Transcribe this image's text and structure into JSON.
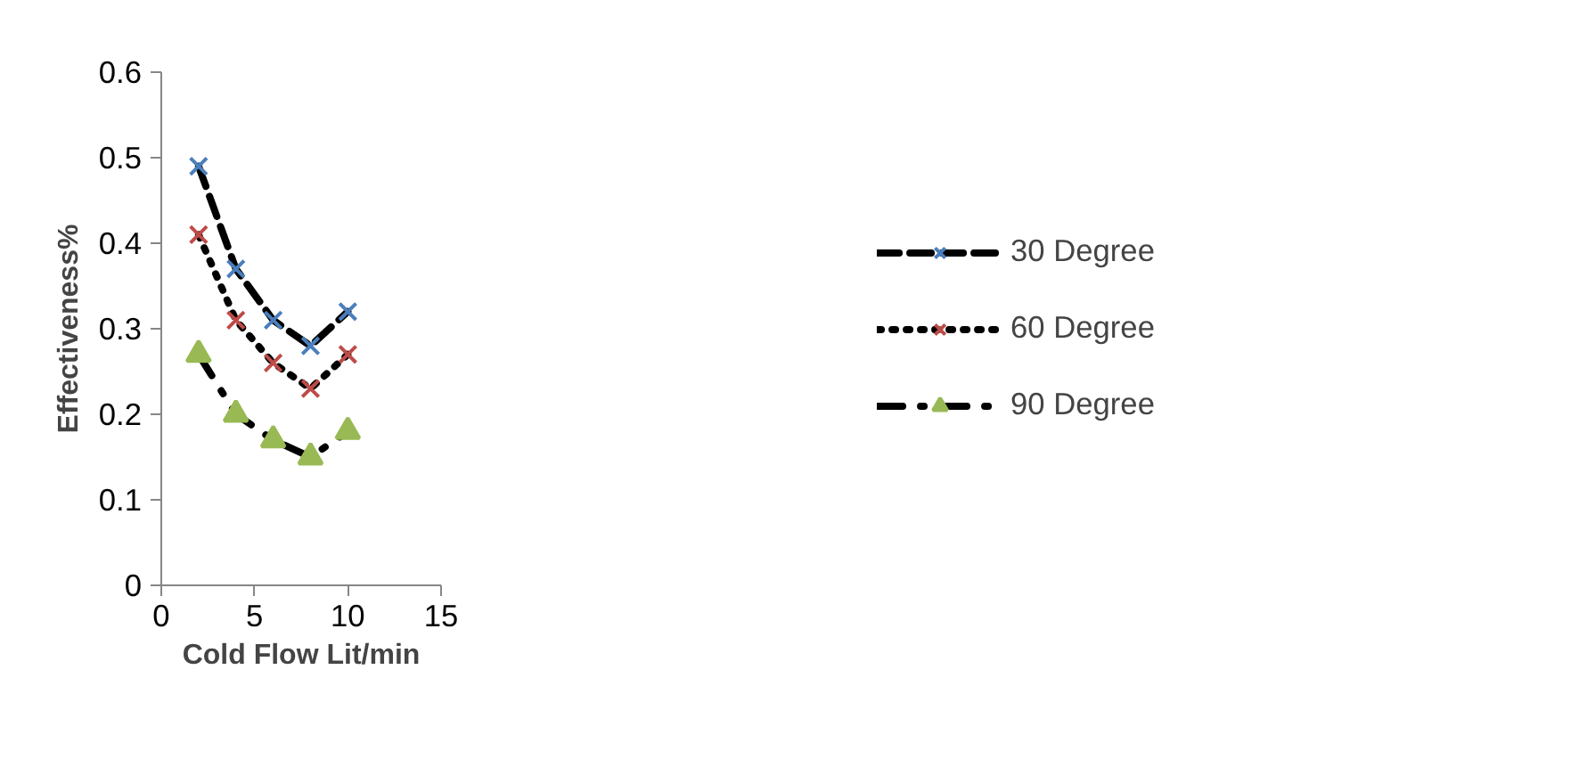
{
  "chart_data": {
    "type": "line",
    "xlabel": "Cold Flow Lit/min",
    "ylabel": "Effectiveness%",
    "x": [
      2,
      4,
      6,
      8,
      10
    ],
    "series": [
      {
        "name": "30 Degree",
        "color": "#4a7ebb",
        "values": [
          0.49,
          0.37,
          0.31,
          0.28,
          0.32
        ],
        "marker": "cross",
        "line_style": "dashed"
      },
      {
        "name": "60 Degree",
        "color": "#be4b48",
        "values": [
          0.41,
          0.31,
          0.26,
          0.23,
          0.27
        ],
        "marker": "cross",
        "line_style": "dotted"
      },
      {
        "name": "90 Degree",
        "color": "#98b954",
        "values": [
          0.27,
          0.2,
          0.17,
          0.15,
          0.18
        ],
        "marker": "triangle",
        "line_style": "dashdot"
      }
    ],
    "xlim": [
      0,
      15
    ],
    "xticks": [
      0,
      5,
      10,
      15
    ],
    "ylim": [
      0,
      0.6
    ],
    "yticks": [
      0,
      0.1,
      0.2,
      0.3,
      0.4,
      0.5,
      0.6
    ],
    "grid": false,
    "legend": "right"
  }
}
